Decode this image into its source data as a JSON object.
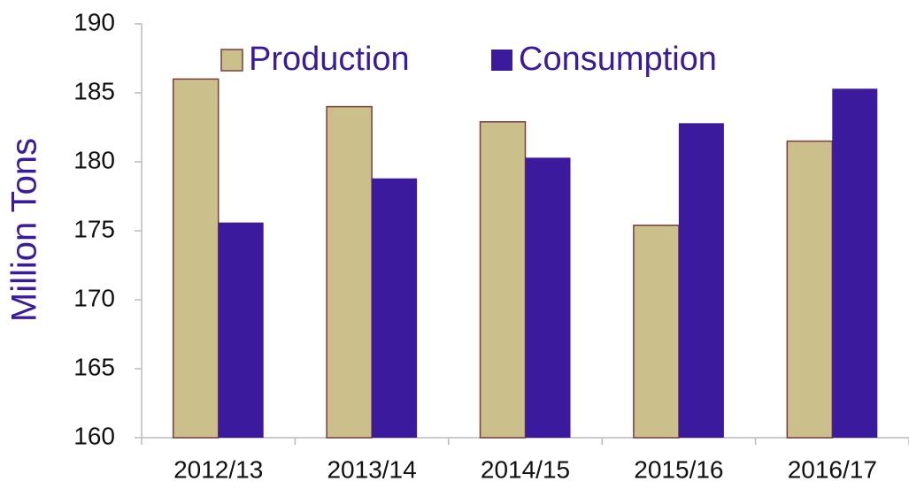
{
  "chart_data": {
    "type": "bar",
    "ylabel": "Million Tons",
    "categories": [
      "2012/13",
      "2013/14",
      "2014/15",
      "2015/16",
      "2016/17"
    ],
    "series": [
      {
        "name": "Production",
        "color": "#cbbf8c",
        "values": [
          186.0,
          184.0,
          182.9,
          175.4,
          181.5
        ]
      },
      {
        "name": "Consumption",
        "color": "#3b1a9e",
        "values": [
          175.6,
          178.8,
          180.3,
          182.8,
          185.3
        ]
      }
    ],
    "ylim": [
      160,
      190
    ],
    "yticks": [
      160,
      165,
      170,
      175,
      180,
      185,
      190
    ],
    "grid": false,
    "legend": "top"
  }
}
